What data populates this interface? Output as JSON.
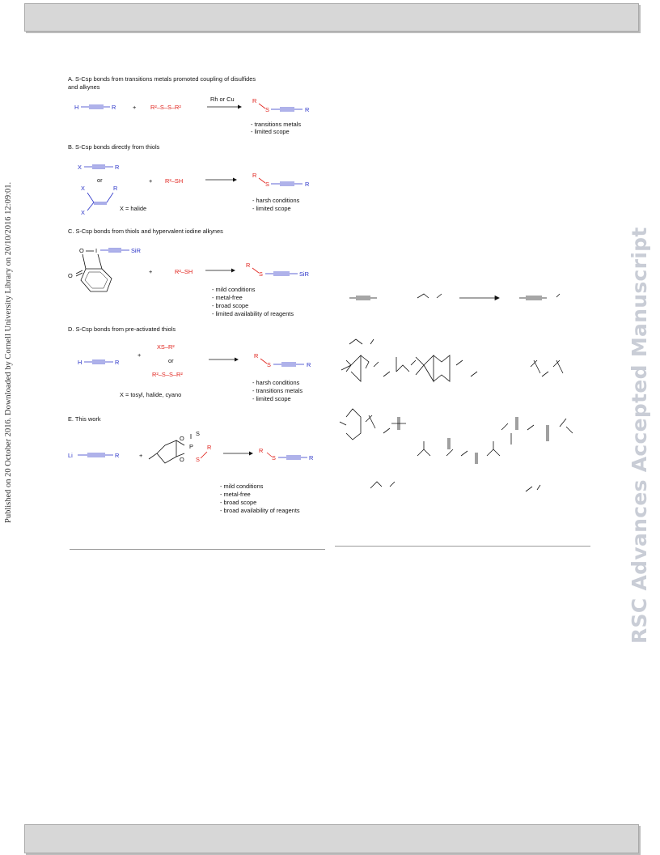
{
  "side_text": "Published on 20 October 2016. Downloaded by Cornell University Library on 20/10/2016 12:09:01.",
  "watermark": "RSC Advances Accepted Manuscript",
  "scheme": {
    "A": {
      "heading_line1": "A. S-Csp bonds from transitions metals promoted coupling of disulfides",
      "heading_line2": "and alkynes",
      "reagent_h": "H",
      "r1": "R",
      "plus": "+",
      "disulfide": "R²–S–S–R²",
      "catalyst": "Rh or Cu",
      "product_r2": "R",
      "product_s": "S",
      "notes": [
        "- transitions metals",
        "- limited scope"
      ]
    },
    "B": {
      "heading": "B. S-Csp bonds directly from thiols",
      "x": "X",
      "or": "or",
      "thiol": "R²–SH",
      "x_def": "X = halide",
      "notes": [
        "- harsh conditions",
        "- limited scope"
      ]
    },
    "C": {
      "heading": "C. S-Csp bonds from thiols and hypervalent iodine alkynes",
      "o": "O",
      "i": "I",
      "sir3": "SiR",
      "thiol": "R²–SH",
      "notes": [
        "- mild conditions",
        "- metal-free",
        "- broad scope",
        "- limited availability of reagents"
      ]
    },
    "D": {
      "heading": "D. S-Csp bonds from pre-activated thiols",
      "xs": "XS–R²",
      "or": "or",
      "disulfide": "R²–S–S–R²",
      "x_def": "X = tosyl, halide, cyano",
      "notes": [
        "- harsh conditions",
        "- transitions metals",
        "- limited scope"
      ]
    },
    "E": {
      "heading": "E. This work",
      "li": "Li",
      "r": "R",
      "notes": [
        "- mild conditions",
        "- metal-free",
        "- broad scope",
        "- broad availability of reagents"
      ]
    }
  }
}
